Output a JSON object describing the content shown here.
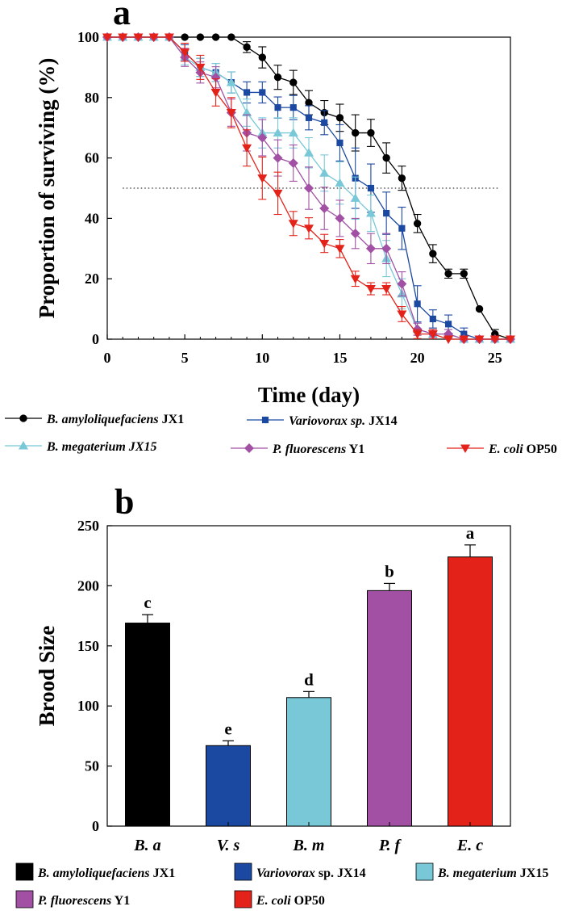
{
  "panel_a_label": "a",
  "panel_b_label": "b",
  "colors": {
    "jx1": "#000000",
    "jx14": "#1b48a0",
    "jx15": "#78c8d8",
    "y1": "#a150a4",
    "op50": "#e32219"
  },
  "chart_data": [
    {
      "type": "line",
      "panel": "a",
      "xlabel": "Time (day)",
      "ylabel": "Proportion of surviving (%)",
      "xlim": [
        0,
        26
      ],
      "ylim": [
        0,
        100
      ],
      "xticks": [
        0,
        5,
        10,
        15,
        20,
        25
      ],
      "yticks": [
        0,
        20,
        40,
        60,
        80,
        100
      ],
      "reference_line_y": 50,
      "legend": [
        {
          "italic": "B. amyloliquefaciens",
          "plain": " JX1"
        },
        {
          "italic": "Variovorax sp.",
          "plain": " JX14"
        },
        {
          "italic": "B. megaterium JX15",
          "plain": ""
        },
        {
          "italic": "P. fluorescens",
          "plain": " Y1"
        },
        {
          "italic": "E. coli",
          "plain": " OP50"
        }
      ],
      "series": [
        {
          "name": "B. amyloliquefaciens JX1",
          "key": "jx1",
          "marker": "circle",
          "x": [
            0,
            1,
            2,
            3,
            4,
            5,
            6,
            7,
            8,
            9,
            10,
            11,
            12,
            13,
            14,
            15,
            16,
            17,
            18,
            19,
            20,
            21,
            22,
            23,
            24,
            25,
            26
          ],
          "y": [
            100,
            100,
            100,
            100,
            100,
            100,
            100,
            100,
            100,
            96.7,
            93.3,
            86.7,
            85,
            78.3,
            75,
            73.3,
            68.3,
            68.3,
            60,
            53.3,
            38.3,
            28.3,
            21.7,
            21.7,
            10,
            1.7,
            0
          ],
          "err": [
            0,
            0,
            0,
            0,
            0,
            0,
            0,
            0,
            0,
            1.8,
            3.5,
            4,
            4,
            4,
            4,
            4.5,
            6,
            4.5,
            5,
            4,
            3,
            3,
            1.5,
            1.5,
            0,
            1.5,
            0
          ]
        },
        {
          "name": "Variovorax sp. JX14",
          "key": "jx14",
          "marker": "square",
          "x": [
            0,
            1,
            2,
            3,
            4,
            5,
            6,
            7,
            8,
            9,
            10,
            11,
            12,
            13,
            14,
            15,
            16,
            17,
            18,
            19,
            20,
            21,
            22,
            23,
            24,
            25,
            26
          ],
          "y": [
            100,
            100,
            100,
            100,
            100,
            95,
            90,
            88.3,
            85,
            81.7,
            81.7,
            76.7,
            76.7,
            73.3,
            71.7,
            65,
            53.3,
            50,
            41.7,
            36.7,
            11.7,
            6.7,
            5,
            1.7,
            0,
            0,
            0
          ],
          "err": [
            0,
            0,
            0,
            0,
            0,
            2.5,
            3,
            3,
            3.5,
            3.5,
            3.5,
            3.5,
            4,
            4,
            4,
            6,
            10,
            8,
            7,
            7,
            6,
            3,
            3,
            2,
            0,
            0,
            0
          ]
        },
        {
          "name": "B. megaterium JX15",
          "key": "jx15",
          "marker": "triangle-up",
          "x": [
            0,
            1,
            2,
            3,
            4,
            5,
            6,
            7,
            8,
            9,
            10,
            11,
            12,
            13,
            14,
            15,
            16,
            17,
            18,
            19,
            20,
            21,
            22,
            23,
            24,
            25,
            26
          ],
          "y": [
            100,
            100,
            100,
            100,
            100,
            93.3,
            90,
            88.3,
            85,
            75,
            68.3,
            68.3,
            68.3,
            61.7,
            55,
            51.7,
            46.7,
            41.7,
            26.7,
            15,
            3.3,
            1.7,
            1.7,
            0,
            0,
            0,
            0
          ],
          "err": [
            0,
            0,
            0,
            0,
            0,
            2.5,
            3,
            3,
            3.5,
            4.5,
            5,
            5,
            5,
            5,
            6,
            7,
            7,
            6,
            6,
            5,
            2,
            1.5,
            1.5,
            0,
            0,
            0,
            0
          ]
        },
        {
          "name": "P. fluorescens Y1",
          "key": "y1",
          "marker": "diamond",
          "x": [
            0,
            1,
            2,
            3,
            4,
            5,
            6,
            7,
            8,
            9,
            10,
            11,
            12,
            13,
            14,
            15,
            16,
            17,
            18,
            19,
            20,
            21,
            22,
            23,
            24,
            25,
            26
          ],
          "y": [
            100,
            100,
            100,
            100,
            100,
            93.3,
            88.3,
            86.7,
            75,
            68.3,
            66.7,
            60,
            58.3,
            50,
            43.3,
            40,
            35,
            30,
            30,
            18.3,
            3.3,
            1.7,
            1.7,
            0,
            0,
            0,
            0
          ],
          "err": [
            0,
            0,
            0,
            0,
            0,
            3,
            3.5,
            3.5,
            4.5,
            6,
            6,
            6,
            6,
            7,
            7,
            6,
            5,
            5,
            5,
            4,
            2,
            1.5,
            1.5,
            0,
            0,
            0,
            0
          ]
        },
        {
          "name": "E. coli OP50",
          "key": "op50",
          "marker": "triangle-down",
          "x": [
            0,
            1,
            2,
            3,
            4,
            5,
            6,
            7,
            8,
            9,
            10,
            11,
            12,
            13,
            14,
            15,
            16,
            17,
            18,
            19,
            20,
            21,
            22,
            23,
            24,
            25,
            26
          ],
          "y": [
            100,
            100,
            100,
            100,
            100,
            95,
            90,
            81.7,
            75,
            63.3,
            53.3,
            48.3,
            38.3,
            36.7,
            31.7,
            30,
            20,
            16.7,
            16.7,
            8.3,
            1.7,
            1.7,
            0,
            0,
            0,
            0,
            0
          ],
          "err": [
            0,
            0,
            0,
            0,
            0,
            3,
            4,
            4.5,
            5,
            6,
            7,
            7,
            4,
            3.5,
            3,
            3,
            2.5,
            2,
            2,
            2.5,
            1.5,
            1.5,
            0,
            0,
            0,
            0,
            0
          ]
        }
      ]
    },
    {
      "type": "bar",
      "panel": "b",
      "ylabel": "Brood Size",
      "xlabel": "",
      "ylim": [
        0,
        250
      ],
      "yticks": [
        0,
        50,
        100,
        150,
        200,
        250
      ],
      "categories": [
        "B. a",
        "V. s",
        "B. m",
        "P. f",
        "E. c"
      ],
      "values": [
        169,
        67,
        107,
        196,
        224
      ],
      "errors": [
        7,
        4,
        5,
        6,
        10
      ],
      "significance": [
        "c",
        "e",
        "d",
        "b",
        "a"
      ],
      "bar_color_keys": [
        "jx1",
        "jx14",
        "jx15",
        "y1",
        "op50"
      ],
      "legend": [
        {
          "italic": "B. amyloliquefaciens",
          "plain": " JX1"
        },
        {
          "italic": "Variovorax",
          "plain": " sp. JX14"
        },
        {
          "italic": "B. megaterium",
          "plain": " JX15"
        },
        {
          "italic": "P. fluorescens",
          "plain": " Y1"
        },
        {
          "italic": "E. coli",
          "plain": " OP50"
        }
      ]
    }
  ]
}
